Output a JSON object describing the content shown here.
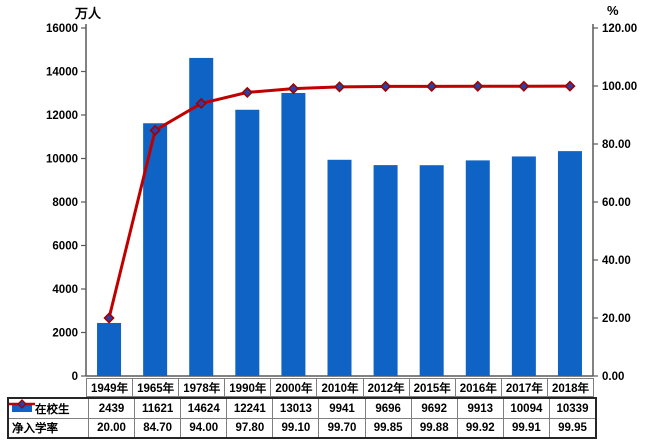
{
  "chart_data": {
    "type": "combo-bar-line",
    "title": "",
    "categories": [
      "1949年",
      "1965年",
      "1978年",
      "1990年",
      "2000年",
      "2010年",
      "2012年",
      "2015年",
      "2016年",
      "2017年",
      "2018年"
    ],
    "series": [
      {
        "name": "在校生",
        "type": "bar",
        "axis": "left",
        "color": "#0f63c4",
        "values": [
          2439,
          11621,
          14624,
          12241,
          13013,
          9941,
          9696,
          9692,
          9913,
          10094,
          10339
        ],
        "display": [
          "2439",
          "11621",
          "14624",
          "12241",
          "13013",
          "9941",
          "9696",
          "9692",
          "9913",
          "10094",
          "10339"
        ]
      },
      {
        "name": "净入学率",
        "type": "line",
        "axis": "right",
        "color": "#c00000",
        "marker": {
          "shape": "diamond",
          "fill": "#2b3faa",
          "stroke": "#a00000"
        },
        "values": [
          20.0,
          84.7,
          94.0,
          97.8,
          99.1,
          99.7,
          99.85,
          99.88,
          99.92,
          99.91,
          99.95
        ],
        "display": [
          "20.00",
          "84.70",
          "94.00",
          "97.80",
          "99.10",
          "99.70",
          "99.85",
          "99.88",
          "99.92",
          "99.91",
          "99.95"
        ]
      }
    ],
    "left_axis": {
      "title": "万人",
      "min": 0,
      "max": 16000,
      "step": 2000,
      "tick_labels": [
        "16000",
        "14000",
        "12000",
        "10000",
        "8000",
        "6000",
        "4000",
        "2000",
        "0"
      ]
    },
    "right_axis": {
      "title": "%",
      "min": 0,
      "max": 120,
      "step": 20,
      "tick_labels": [
        "120.00",
        "100.00",
        "80.00",
        "60.00",
        "40.00",
        "20.00",
        "0.00"
      ]
    },
    "grid": false,
    "legend_position": "table-left",
    "colors": {
      "axis": "#595959",
      "table_border_outer": "#262626",
      "table_border_inner": "#7f7f7f",
      "text": "#000000"
    }
  }
}
